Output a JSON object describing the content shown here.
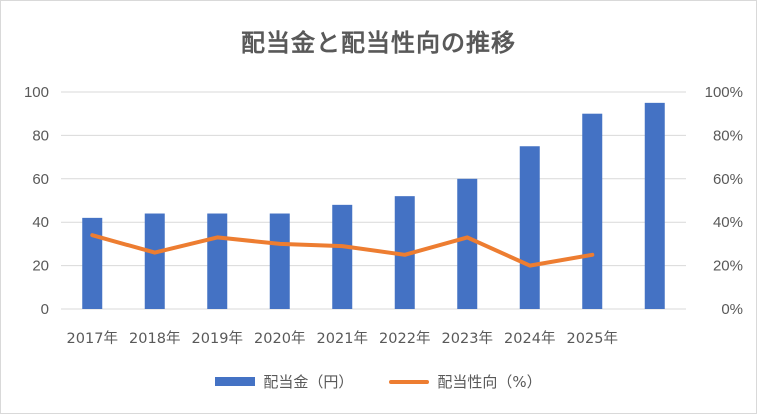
{
  "chart_data": {
    "type": "bar",
    "title": "配当金と配当性向の推移",
    "categories": [
      "2017年",
      "2018年",
      "2019年",
      "2020年",
      "2021年",
      "2022年",
      "2023年",
      "2024年",
      "2025年",
      ""
    ],
    "series": [
      {
        "name": "配当金（円）",
        "type": "bar",
        "axis": "left",
        "values": [
          42,
          44,
          44,
          44,
          48,
          52,
          60,
          75,
          90,
          95
        ]
      },
      {
        "name": "配当性向（%）",
        "type": "line",
        "axis": "right",
        "values": [
          34,
          26,
          33,
          30,
          29,
          25,
          33,
          20,
          25,
          null
        ]
      }
    ],
    "y_left": {
      "range": [
        0,
        100
      ],
      "ticks": [
        "0",
        "20",
        "40",
        "60",
        "80",
        "100"
      ]
    },
    "y_right": {
      "range": [
        0,
        100
      ],
      "ticks": [
        "0%",
        "20%",
        "40%",
        "60%",
        "80%",
        "100%"
      ]
    },
    "grid": true,
    "legend_position": "bottom",
    "colors": {
      "bar": "#4472c4",
      "line": "#ed7d31",
      "grid": "#d9d9d9",
      "text": "#595959"
    }
  }
}
